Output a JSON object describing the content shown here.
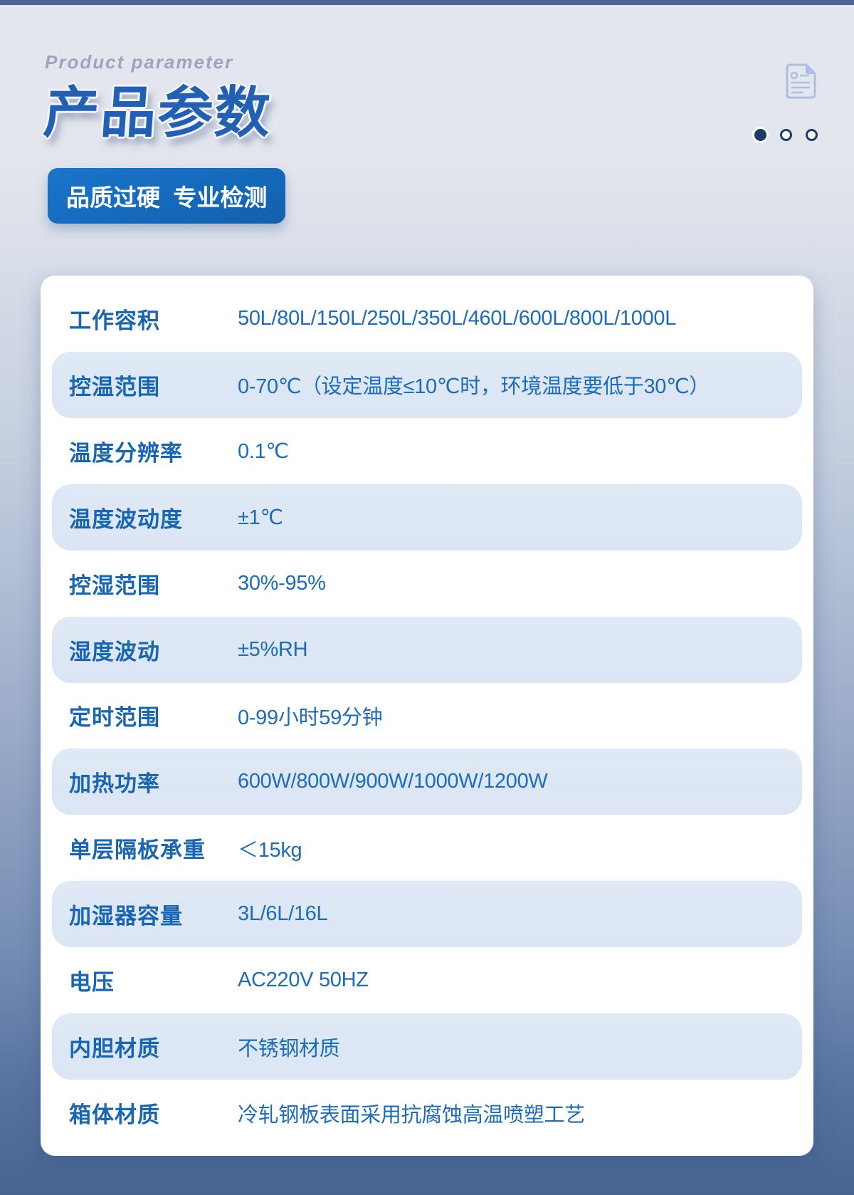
{
  "page": {
    "eyebrow": "Product parameter",
    "title": "产品参数",
    "badge": "品质过硬  专业检测"
  },
  "pagination": {
    "dots": [
      true,
      false,
      false
    ]
  },
  "icons": {
    "document_icon": "document-icon"
  },
  "colors": {
    "title_blue": "#2160b4",
    "badge_blue": "#1467bf",
    "label_blue": "#1765b3",
    "value_blue": "#1b6cbd",
    "pill_bg": "#dde7f4",
    "top_bar": "#4d6796",
    "bg_bottom": "#49648f",
    "dot_navy": "#1f3a66",
    "icon_stroke": "#a9c0e2"
  },
  "table": {
    "rows": [
      {
        "label": "工作容积",
        "value": "50L/80L/150L/250L/350L/460L/600L/800L/1000L"
      },
      {
        "label": "控温范围",
        "value": "0-70℃（设定温度≤10℃时，环境温度要低于30℃）"
      },
      {
        "label": "温度分辨率",
        "value": "0.1℃"
      },
      {
        "label": "温度波动度",
        "value": "±1℃"
      },
      {
        "label": "控湿范围",
        "value": "30%-95%"
      },
      {
        "label": "湿度波动",
        "value": "±5%RH"
      },
      {
        "label": "定时范围",
        "value": "0-99小时59分钟"
      },
      {
        "label": "加热功率",
        "value": "600W/800W/900W/1000W/1200W"
      },
      {
        "label": "单层隔板承重",
        "value": "＜15kg"
      },
      {
        "label": "加湿器容量",
        "value": "3L/6L/16L"
      },
      {
        "label": "电压",
        "value": "AC220V 50HZ"
      },
      {
        "label": "内胆材质",
        "value": "不锈钢材质"
      },
      {
        "label": "箱体材质",
        "value": "冷轧钢板表面采用抗腐蚀高温喷塑工艺"
      }
    ]
  }
}
